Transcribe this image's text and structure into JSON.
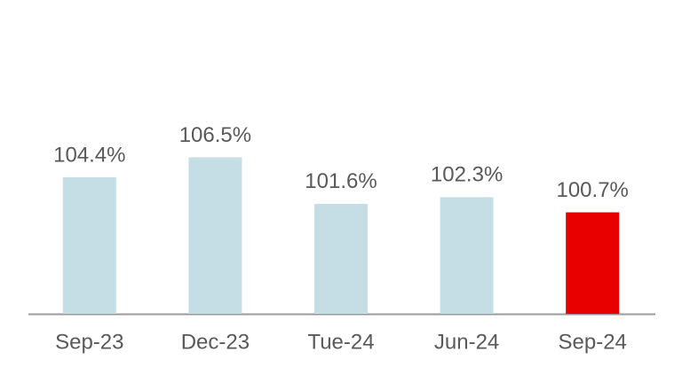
{
  "chart_data": {
    "type": "bar",
    "categories": [
      "Sep-23",
      "Dec-23",
      "Tue-24",
      "Jun-24",
      "Sep-24"
    ],
    "values": [
      104.4,
      106.5,
      101.6,
      102.3,
      100.7
    ],
    "value_labels": [
      "104.4%",
      "106.5%",
      "101.6%",
      "102.3%",
      "100.7%"
    ],
    "colors": [
      "#c5dee6",
      "#c5dee6",
      "#c5dee6",
      "#c5dee6",
      "#e80000"
    ],
    "ylim": [
      90,
      120
    ]
  }
}
